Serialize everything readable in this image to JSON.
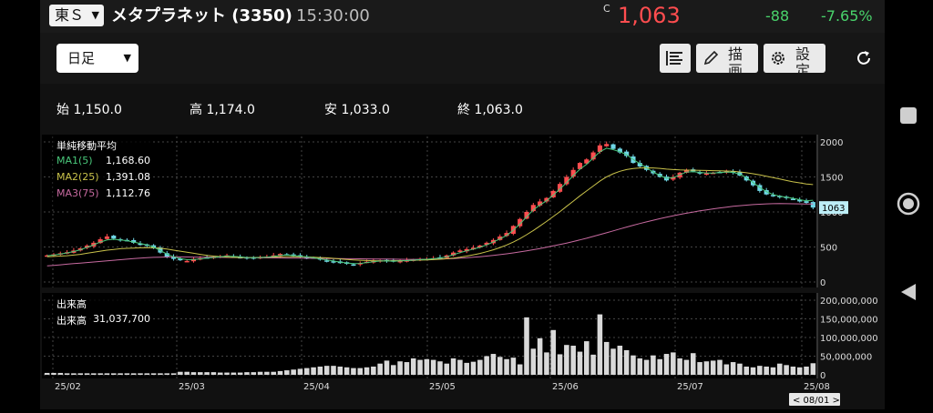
{
  "header": {
    "market_label": "東Ｓ",
    "title": "メタプラネット (3350)",
    "time": "15:30:00",
    "price_mark": "C",
    "price": "1,063",
    "change": "-88",
    "change_pct": "-7.65%",
    "colors": {
      "up": "#ff4d4f",
      "down": "#49d36b"
    }
  },
  "toolbar": {
    "period": "日足",
    "draw_label": "描画",
    "settings_label": "設定",
    "icons": [
      "list-icon",
      "pencil-icon",
      "gear-icon",
      "refresh-icon"
    ]
  },
  "ohlc": {
    "open_label": "始",
    "open": "1,150.0",
    "high_label": "高",
    "high": "1,174.0",
    "low_label": "安",
    "low": "1,033.0",
    "close_label": "終",
    "close": "1,063.0"
  },
  "legend": {
    "title": "単純移動平均",
    "ma1_label": "MA1(5)",
    "ma1_value": "1,168.60",
    "ma2_label": "MA2(25)",
    "ma2_value": "1,391.08",
    "ma3_label": "MA3(75)",
    "ma3_value": "1,112.76"
  },
  "volume_legend": {
    "title": "出来高",
    "label": "出来高",
    "value": "31,037,700"
  },
  "chart_data": [
    {
      "type": "candlestick",
      "y_ticks": [
        "2000",
        "1500",
        "1000",
        "500",
        "0"
      ],
      "ylim": [
        0,
        2000
      ],
      "x_labels": [
        "25/02",
        "25/03",
        "25/04",
        "25/05",
        "25/06",
        "25/07",
        "25/08"
      ],
      "last_price_label": "1063",
      "date_badge": "< 08/01 >",
      "colors": {
        "up": "#ff4d4f",
        "down": "#6fd6e6",
        "ma1": "#49c77a",
        "ma2": "#c9c24a",
        "ma3": "#c76aa0"
      },
      "close_path": [
        380,
        395,
        410,
        425,
        450,
        480,
        520,
        560,
        610,
        650,
        620,
        600,
        590,
        560,
        540,
        520,
        480,
        420,
        360,
        330,
        310,
        300,
        330,
        340,
        350,
        360,
        370,
        380,
        360,
        350,
        340,
        345,
        355,
        360,
        380,
        400,
        390,
        370,
        360,
        350,
        340,
        320,
        300,
        290,
        270,
        260,
        250,
        270,
        290,
        300,
        310,
        300,
        290,
        300,
        310,
        320,
        330,
        330,
        340,
        350,
        380,
        420,
        450,
        470,
        490,
        520,
        560,
        600,
        650,
        700,
        800,
        900,
        1000,
        1100,
        1150,
        1200,
        1300,
        1400,
        1500,
        1600,
        1700,
        1750,
        1850,
        1950,
        1970,
        1900,
        1850,
        1800,
        1700,
        1650,
        1600,
        1550,
        1500,
        1450,
        1500,
        1560,
        1600,
        1580,
        1550,
        1550,
        1560,
        1570,
        1580,
        1560,
        1520,
        1450,
        1380,
        1300,
        1250,
        1230,
        1210,
        1200,
        1180,
        1150,
        1130,
        1063
      ],
      "ma1": [
        375,
        385,
        400,
        415,
        435,
        460,
        495,
        530,
        570,
        600,
        610,
        600,
        590,
        570,
        550,
        530,
        500,
        450,
        400,
        360,
        335,
        320,
        320,
        330,
        340,
        350,
        360,
        370,
        365,
        360,
        350,
        348,
        350,
        355,
        365,
        380,
        385,
        378,
        368,
        358,
        345,
        330,
        315,
        300,
        285,
        272,
        262,
        265,
        278,
        290,
        300,
        300,
        298,
        300,
        305,
        312,
        320,
        325,
        333,
        343,
        360,
        390,
        420,
        445,
        470,
        495,
        530,
        570,
        615,
        665,
        740,
        830,
        930,
        1030,
        1100,
        1160,
        1240,
        1330,
        1420,
        1520,
        1610,
        1680,
        1770,
        1860,
        1910,
        1890,
        1860,
        1820,
        1750,
        1690,
        1630,
        1570,
        1520,
        1480,
        1490,
        1530,
        1570,
        1575,
        1565,
        1555,
        1555,
        1562,
        1570,
        1565,
        1540,
        1490,
        1420,
        1350,
        1290,
        1250,
        1225,
        1210,
        1195,
        1175,
        1160,
        1168
      ],
      "ma2": [
        360,
        365,
        370,
        375,
        385,
        395,
        410,
        425,
        440,
        455,
        465,
        475,
        480,
        485,
        488,
        490,
        488,
        480,
        470,
        455,
        440,
        425,
        410,
        395,
        380,
        370,
        362,
        356,
        352,
        350,
        349,
        350,
        352,
        354,
        356,
        358,
        360,
        360,
        359,
        358,
        355,
        350,
        345,
        338,
        330,
        322,
        315,
        310,
        306,
        304,
        303,
        303,
        304,
        305,
        307,
        310,
        313,
        316,
        320,
        325,
        332,
        342,
        355,
        370,
        388,
        408,
        432,
        460,
        492,
        528,
        570,
        620,
        675,
        735,
        800,
        865,
        935,
        1005,
        1080,
        1155,
        1230,
        1300,
        1370,
        1440,
        1500,
        1545,
        1580,
        1605,
        1620,
        1628,
        1630,
        1628,
        1622,
        1612,
        1605,
        1600,
        1598,
        1596,
        1594,
        1592,
        1590,
        1588,
        1585,
        1580,
        1572,
        1560,
        1545,
        1528,
        1510,
        1490,
        1470,
        1450,
        1430,
        1415,
        1400,
        1391
      ],
      "ma3": [
        230,
        238,
        246,
        254,
        262,
        270,
        278,
        286,
        294,
        302,
        310,
        318,
        326,
        334,
        342,
        348,
        352,
        355,
        357,
        358,
        358,
        357,
        356,
        355,
        354,
        353,
        352,
        351,
        350,
        349,
        348,
        347,
        346,
        345,
        344,
        343,
        342,
        341,
        340,
        339,
        338,
        337,
        336,
        335,
        334,
        333,
        332,
        331,
        330,
        329,
        328,
        327,
        326,
        325,
        324,
        324,
        324,
        325,
        326,
        328,
        331,
        335,
        340,
        346,
        353,
        361,
        370,
        380,
        391,
        403,
        416,
        430,
        445,
        461,
        478,
        496,
        515,
        535,
        556,
        578,
        601,
        625,
        650,
        676,
        703,
        730,
        757,
        784,
        810,
        835,
        859,
        882,
        904,
        925,
        945,
        964,
        982,
        999,
        1015,
        1030,
        1044,
        1057,
        1069,
        1080,
        1090,
        1098,
        1105,
        1111,
        1115,
        1118,
        1119,
        1118,
        1117,
        1115,
        1114,
        1113
      ]
    },
    {
      "type": "bar",
      "series_name": "出来高",
      "y_ticks": [
        "200,000,000",
        "150,000,000",
        "100,000,000",
        "50,000,000",
        "0"
      ],
      "ylim": [
        0,
        200000000
      ],
      "values": [
        5,
        5,
        5,
        4,
        4,
        4,
        4,
        4,
        4,
        4,
        4,
        4,
        4,
        4,
        4,
        4,
        4,
        4,
        4,
        4,
        8,
        8,
        7,
        7,
        7,
        7,
        6,
        6,
        6,
        6,
        7,
        7,
        8,
        8,
        8,
        10,
        12,
        14,
        16,
        18,
        20,
        22,
        24,
        24,
        22,
        20,
        18,
        18,
        20,
        22,
        30,
        38,
        26,
        36,
        34,
        44,
        40,
        42,
        40,
        36,
        30,
        44,
        40,
        32,
        35,
        40,
        50,
        56,
        48,
        42,
        46,
        28,
        154,
        70,
        98,
        60,
        120,
        55,
        80,
        78,
        62,
        90,
        54,
        162,
        88,
        70,
        78,
        66,
        52,
        44,
        40,
        52,
        42,
        56,
        60,
        44,
        40,
        58,
        34,
        36,
        38,
        40,
        28,
        34,
        30,
        22,
        20,
        24,
        22,
        20,
        30,
        26,
        22,
        20,
        22,
        31
      ]
    }
  ]
}
